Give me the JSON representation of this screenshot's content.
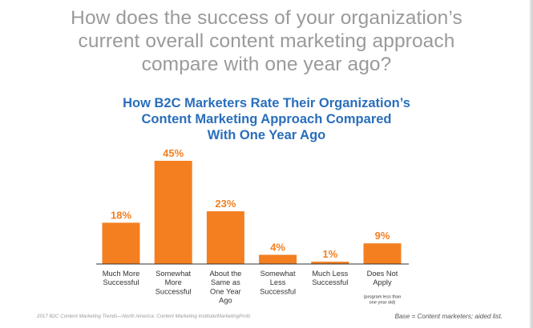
{
  "heading": {
    "lines": [
      "How does the success of your organization’s",
      "current overall content marketing approach",
      "compare with one year ago?"
    ]
  },
  "chart_data": {
    "type": "bar",
    "title": "How B2C Marketers Rate Their Organization’s Content Marketing Approach Compared With One Year Ago",
    "title_lines": [
      "How B2C Marketers Rate Their Organization’s",
      "Content Marketing Approach Compared",
      "With One Year Ago"
    ],
    "categories": [
      [
        "Much More",
        "Successful"
      ],
      [
        "Somewhat",
        "More",
        "Successful"
      ],
      [
        "About the",
        "Same as",
        "One Year",
        "Ago"
      ],
      [
        "Somewhat",
        "Less",
        "Successful"
      ],
      [
        "Much Less",
        "Successful"
      ],
      [
        "Does Not",
        "Apply"
      ]
    ],
    "category_notes": [
      "",
      "",
      "",
      "",
      "",
      "(program less than one year old)"
    ],
    "category_note_lines": [
      [],
      [],
      [],
      [],
      [],
      [
        "(program less than",
        "one year old)"
      ]
    ],
    "values": [
      18,
      45,
      23,
      4,
      1,
      9
    ],
    "value_labels": [
      "18%",
      "45%",
      "23%",
      "4%",
      "1%",
      "9%"
    ],
    "unit": "%",
    "ylim": [
      0,
      45
    ],
    "grid": false,
    "legend": "none",
    "colors": {
      "bar": "#f47f20",
      "value_label": "#f47f20",
      "title": "#2a6ebb",
      "axis": "#333333"
    }
  },
  "footer": {
    "source": "2017 B2C Content Marketing Trends—North America: Content Marketing Institute/MarketingProfs",
    "base_note": "Base = Content marketers; aided list."
  }
}
